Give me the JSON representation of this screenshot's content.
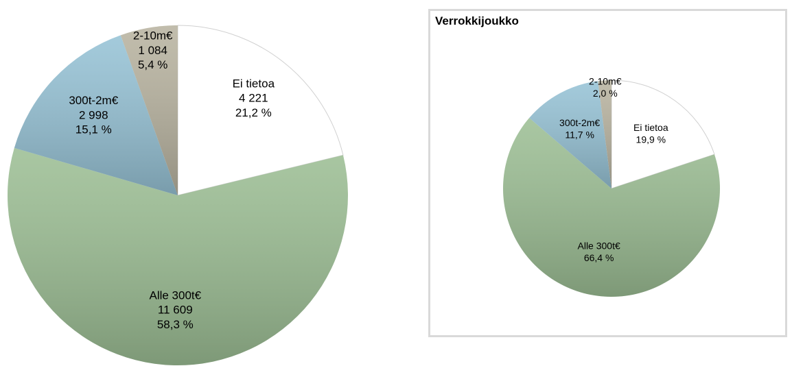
{
  "chart_data": [
    {
      "type": "pie",
      "categories": [
        "Ei tietoa",
        "Alle 300t€",
        "300t-2m€",
        "2-10m€"
      ],
      "values": [
        4221,
        11609,
        2998,
        1084
      ],
      "value_labels": [
        "4 221",
        "11 609",
        "2 998",
        "1 084"
      ],
      "percentages": [
        21.2,
        58.3,
        15.1,
        5.4
      ],
      "percentage_labels": [
        "21,2 %",
        "58,3 %",
        "15,1 %",
        "5,4 %"
      ],
      "colors": [
        "#ffffff",
        "#9dbf95",
        "#97c3d6",
        "#b9b4a1"
      ]
    },
    {
      "type": "pie",
      "title": "Verrokkijoukko",
      "categories": [
        "Ei tietoa",
        "Alle 300t€",
        "300t-2m€",
        "2-10m€"
      ],
      "values": [
        19.9,
        66.4,
        11.7,
        2.0
      ],
      "value_labels": [
        "19,9 %",
        "66,4 %",
        "11,7 %",
        "2,0 %"
      ],
      "colors": [
        "#ffffff",
        "#9dbf95",
        "#97c3d6",
        "#b9b4a1"
      ]
    }
  ]
}
